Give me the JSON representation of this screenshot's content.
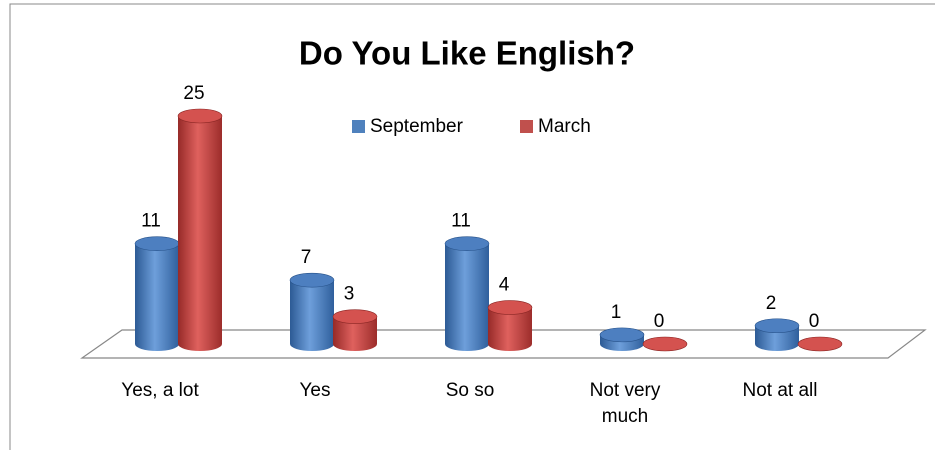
{
  "chart_data": {
    "type": "bar3d",
    "title": "Do You Like English?",
    "categories": [
      "Yes, a lot",
      "Yes",
      "So so",
      "Not very much",
      "Not at all"
    ],
    "series": [
      {
        "name": "September",
        "color": "#4f81bd",
        "values": [
          11,
          7,
          11,
          1,
          2
        ]
      },
      {
        "name": "March",
        "color": "#c0504d",
        "values": [
          25,
          3,
          4,
          0,
          0
        ]
      }
    ],
    "legend": "top"
  }
}
